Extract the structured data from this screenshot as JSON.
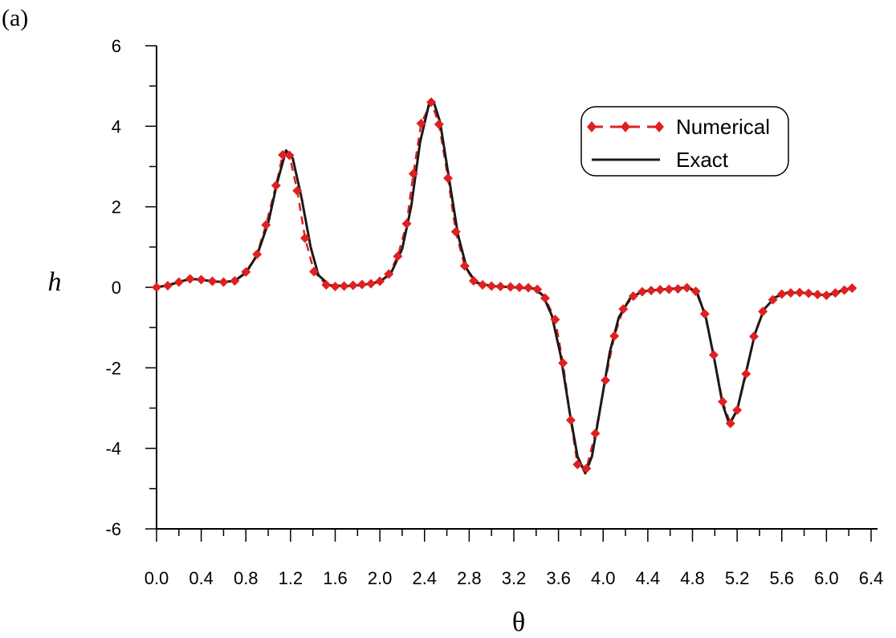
{
  "panel_label": "(a)",
  "chart_data": {
    "type": "line",
    "xlabel": "θ",
    "ylabel": "h",
    "xlim": [
      0.0,
      6.4
    ],
    "ylim": [
      -6,
      6
    ],
    "x_ticks": [
      "0.0",
      "0.4",
      "0.8",
      "1.2",
      "1.6",
      "2.0",
      "2.4",
      "2.8",
      "3.2",
      "3.6",
      "4.0",
      "4.4",
      "4.8",
      "5.2",
      "5.6",
      "6.0",
      "6.4"
    ],
    "y_ticks": [
      "6",
      "4",
      "2",
      "0",
      "-2",
      "-4",
      "-6"
    ],
    "legend_position": "top-right",
    "series": [
      {
        "name": "Numerical",
        "style": "dashed line with diamond markers",
        "color": "#e02020",
        "points": [
          [
            0.0,
            0.0
          ],
          [
            0.1,
            0.04
          ],
          [
            0.2,
            0.13
          ],
          [
            0.3,
            0.21
          ],
          [
            0.4,
            0.19
          ],
          [
            0.5,
            0.15
          ],
          [
            0.6,
            0.13
          ],
          [
            0.7,
            0.16
          ],
          [
            0.8,
            0.38
          ],
          [
            0.9,
            0.82
          ],
          [
            0.98,
            1.55
          ],
          [
            1.07,
            2.53
          ],
          [
            1.13,
            3.29
          ],
          [
            1.19,
            3.28
          ],
          [
            1.26,
            2.4
          ],
          [
            1.33,
            1.22
          ],
          [
            1.41,
            0.39
          ],
          [
            1.52,
            0.06
          ],
          [
            1.6,
            0.02
          ],
          [
            1.68,
            0.03
          ],
          [
            1.76,
            0.05
          ],
          [
            1.84,
            0.07
          ],
          [
            1.92,
            0.09
          ],
          [
            2.0,
            0.15
          ],
          [
            2.08,
            0.33
          ],
          [
            2.16,
            0.77
          ],
          [
            2.24,
            1.58
          ],
          [
            2.3,
            2.82
          ],
          [
            2.37,
            4.07
          ],
          [
            2.46,
            4.6
          ],
          [
            2.53,
            4.05
          ],
          [
            2.61,
            2.71
          ],
          [
            2.68,
            1.38
          ],
          [
            2.76,
            0.53
          ],
          [
            2.84,
            0.16
          ],
          [
            2.92,
            0.06
          ],
          [
            3.0,
            0.03
          ],
          [
            3.08,
            0.02
          ],
          [
            3.17,
            0.01
          ],
          [
            3.25,
            0.0
          ],
          [
            3.33,
            -0.01
          ],
          [
            3.41,
            -0.05
          ],
          [
            3.48,
            -0.27
          ],
          [
            3.57,
            -0.8
          ],
          [
            3.64,
            -1.88
          ],
          [
            3.71,
            -3.3
          ],
          [
            3.77,
            -4.4
          ],
          [
            3.85,
            -4.5
          ],
          [
            3.93,
            -3.63
          ],
          [
            4.02,
            -2.31
          ],
          [
            4.1,
            -1.21
          ],
          [
            4.18,
            -0.54
          ],
          [
            4.27,
            -0.22
          ],
          [
            4.35,
            -0.11
          ],
          [
            4.43,
            -0.08
          ],
          [
            4.51,
            -0.06
          ],
          [
            4.59,
            -0.05
          ],
          [
            4.67,
            -0.04
          ],
          [
            4.75,
            -0.01
          ],
          [
            4.83,
            -0.1
          ],
          [
            4.91,
            -0.66
          ],
          [
            4.99,
            -1.68
          ],
          [
            5.07,
            -2.84
          ],
          [
            5.14,
            -3.38
          ],
          [
            5.2,
            -3.05
          ],
          [
            5.28,
            -2.15
          ],
          [
            5.35,
            -1.22
          ],
          [
            5.43,
            -0.6
          ],
          [
            5.52,
            -0.31
          ],
          [
            5.6,
            -0.17
          ],
          [
            5.68,
            -0.14
          ],
          [
            5.76,
            -0.13
          ],
          [
            5.84,
            -0.15
          ],
          [
            5.92,
            -0.18
          ],
          [
            6.0,
            -0.2
          ],
          [
            6.08,
            -0.14
          ],
          [
            6.16,
            -0.07
          ],
          [
            6.23,
            -0.02
          ]
        ]
      },
      {
        "name": "Exact",
        "style": "solid line",
        "color": "#1a1a1a",
        "points": [
          [
            0.0,
            0.0
          ],
          [
            0.1,
            0.05
          ],
          [
            0.2,
            0.13
          ],
          [
            0.3,
            0.21
          ],
          [
            0.4,
            0.19
          ],
          [
            0.5,
            0.15
          ],
          [
            0.6,
            0.13
          ],
          [
            0.7,
            0.16
          ],
          [
            0.8,
            0.36
          ],
          [
            0.9,
            0.8
          ],
          [
            1.0,
            1.6
          ],
          [
            1.08,
            2.6
          ],
          [
            1.16,
            3.4
          ],
          [
            1.22,
            3.2
          ],
          [
            1.3,
            2.2
          ],
          [
            1.38,
            1.0
          ],
          [
            1.45,
            0.3
          ],
          [
            1.55,
            0.05
          ],
          [
            1.7,
            0.03
          ],
          [
            1.85,
            0.06
          ],
          [
            2.0,
            0.14
          ],
          [
            2.1,
            0.35
          ],
          [
            2.2,
            0.95
          ],
          [
            2.28,
            2.0
          ],
          [
            2.36,
            3.6
          ],
          [
            2.44,
            4.55
          ],
          [
            2.48,
            4.62
          ],
          [
            2.54,
            4.1
          ],
          [
            2.62,
            2.7
          ],
          [
            2.7,
            1.3
          ],
          [
            2.78,
            0.45
          ],
          [
            2.86,
            0.12
          ],
          [
            3.0,
            0.03
          ],
          [
            3.2,
            0.0
          ],
          [
            3.38,
            -0.03
          ],
          [
            3.46,
            -0.2
          ],
          [
            3.54,
            -0.7
          ],
          [
            3.62,
            -1.7
          ],
          [
            3.7,
            -3.1
          ],
          [
            3.77,
            -4.2
          ],
          [
            3.84,
            -4.62
          ],
          [
            3.9,
            -4.2
          ],
          [
            3.98,
            -2.9
          ],
          [
            4.06,
            -1.6
          ],
          [
            4.14,
            -0.75
          ],
          [
            4.24,
            -0.28
          ],
          [
            4.35,
            -0.1
          ],
          [
            4.5,
            -0.06
          ],
          [
            4.65,
            -0.03
          ],
          [
            4.76,
            0.0
          ],
          [
            4.84,
            -0.12
          ],
          [
            4.92,
            -0.75
          ],
          [
            5.0,
            -1.85
          ],
          [
            5.07,
            -2.9
          ],
          [
            5.13,
            -3.4
          ],
          [
            5.2,
            -3.05
          ],
          [
            5.28,
            -2.1
          ],
          [
            5.36,
            -1.15
          ],
          [
            5.44,
            -0.55
          ],
          [
            5.54,
            -0.25
          ],
          [
            5.65,
            -0.13
          ],
          [
            5.8,
            -0.14
          ],
          [
            5.95,
            -0.19
          ],
          [
            6.05,
            -0.17
          ],
          [
            6.15,
            -0.07
          ],
          [
            6.25,
            0.0
          ]
        ]
      }
    ]
  }
}
